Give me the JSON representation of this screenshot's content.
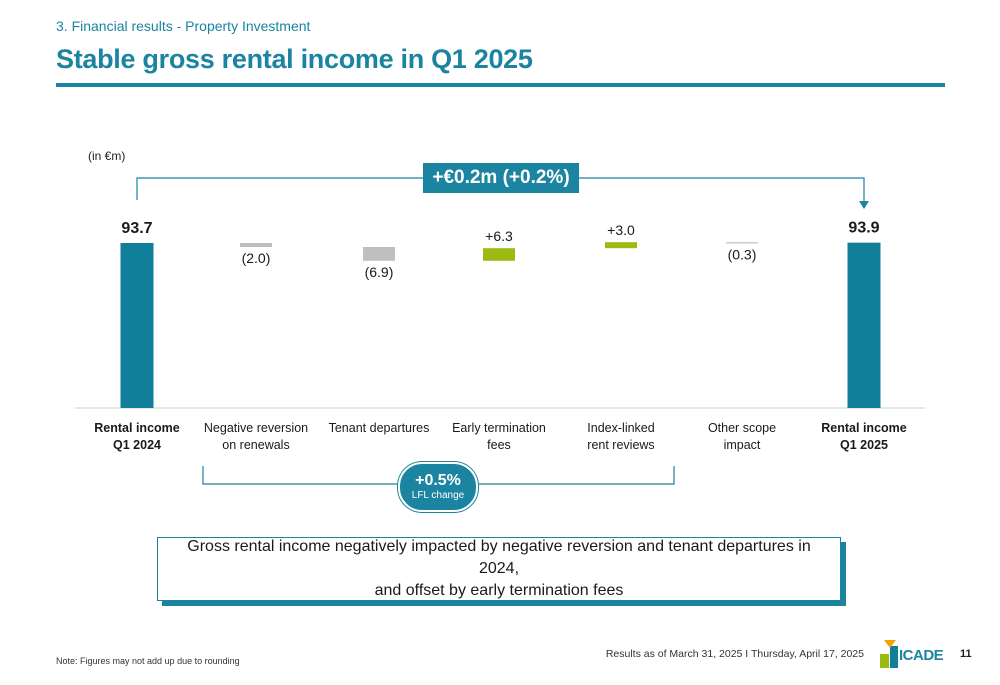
{
  "header": {
    "section": "3. Financial results - Property Investment",
    "title": "Stable gross rental income in Q1 2025"
  },
  "unit_label": "(in €m)",
  "diff_badge": "+€0.2m (+0.2%)",
  "lfl": {
    "value": "+0.5%",
    "caption": "LFL change"
  },
  "message_line1": "Gross rental income negatively impacted by negative reversion and tenant departures in 2024,",
  "message_line2": "and offset by early termination fees",
  "footer": {
    "note": "Note: Figures may not add up due to rounding",
    "info": "Results as of March 31, 2025   I   Thursday, April 17, 2025",
    "page_number": "11",
    "logo_text": "ICADE"
  },
  "colors": {
    "total": "#117e9a",
    "decrease": "#bfbfbf",
    "increase": "#9bbb13",
    "accent": "#1b84a0"
  },
  "chart_data": {
    "type": "bar",
    "subtype": "waterfall",
    "unit": "€m",
    "categories": [
      [
        "Rental income",
        "Q1 2024"
      ],
      [
        "Negative reversion",
        "on renewals"
      ],
      [
        "Tenant departures"
      ],
      [
        "Early termination",
        "fees"
      ],
      [
        "Index-linked",
        "rent reviews"
      ],
      [
        "Other scope",
        "impact"
      ],
      [
        "Rental income",
        "Q1 2025"
      ]
    ],
    "bars": [
      {
        "kind": "total",
        "value": 93.7,
        "label": "93.7"
      },
      {
        "kind": "decrease",
        "value": -2.0,
        "label": "(2.0)"
      },
      {
        "kind": "decrease",
        "value": -6.9,
        "label": "(6.9)"
      },
      {
        "kind": "increase",
        "value": 6.3,
        "label": "+6.3"
      },
      {
        "kind": "increase",
        "value": 3.0,
        "label": "+3.0"
      },
      {
        "kind": "decrease",
        "value": -0.3,
        "label": "(0.3)"
      },
      {
        "kind": "total",
        "value": 93.9,
        "label": "93.9"
      }
    ]
  }
}
